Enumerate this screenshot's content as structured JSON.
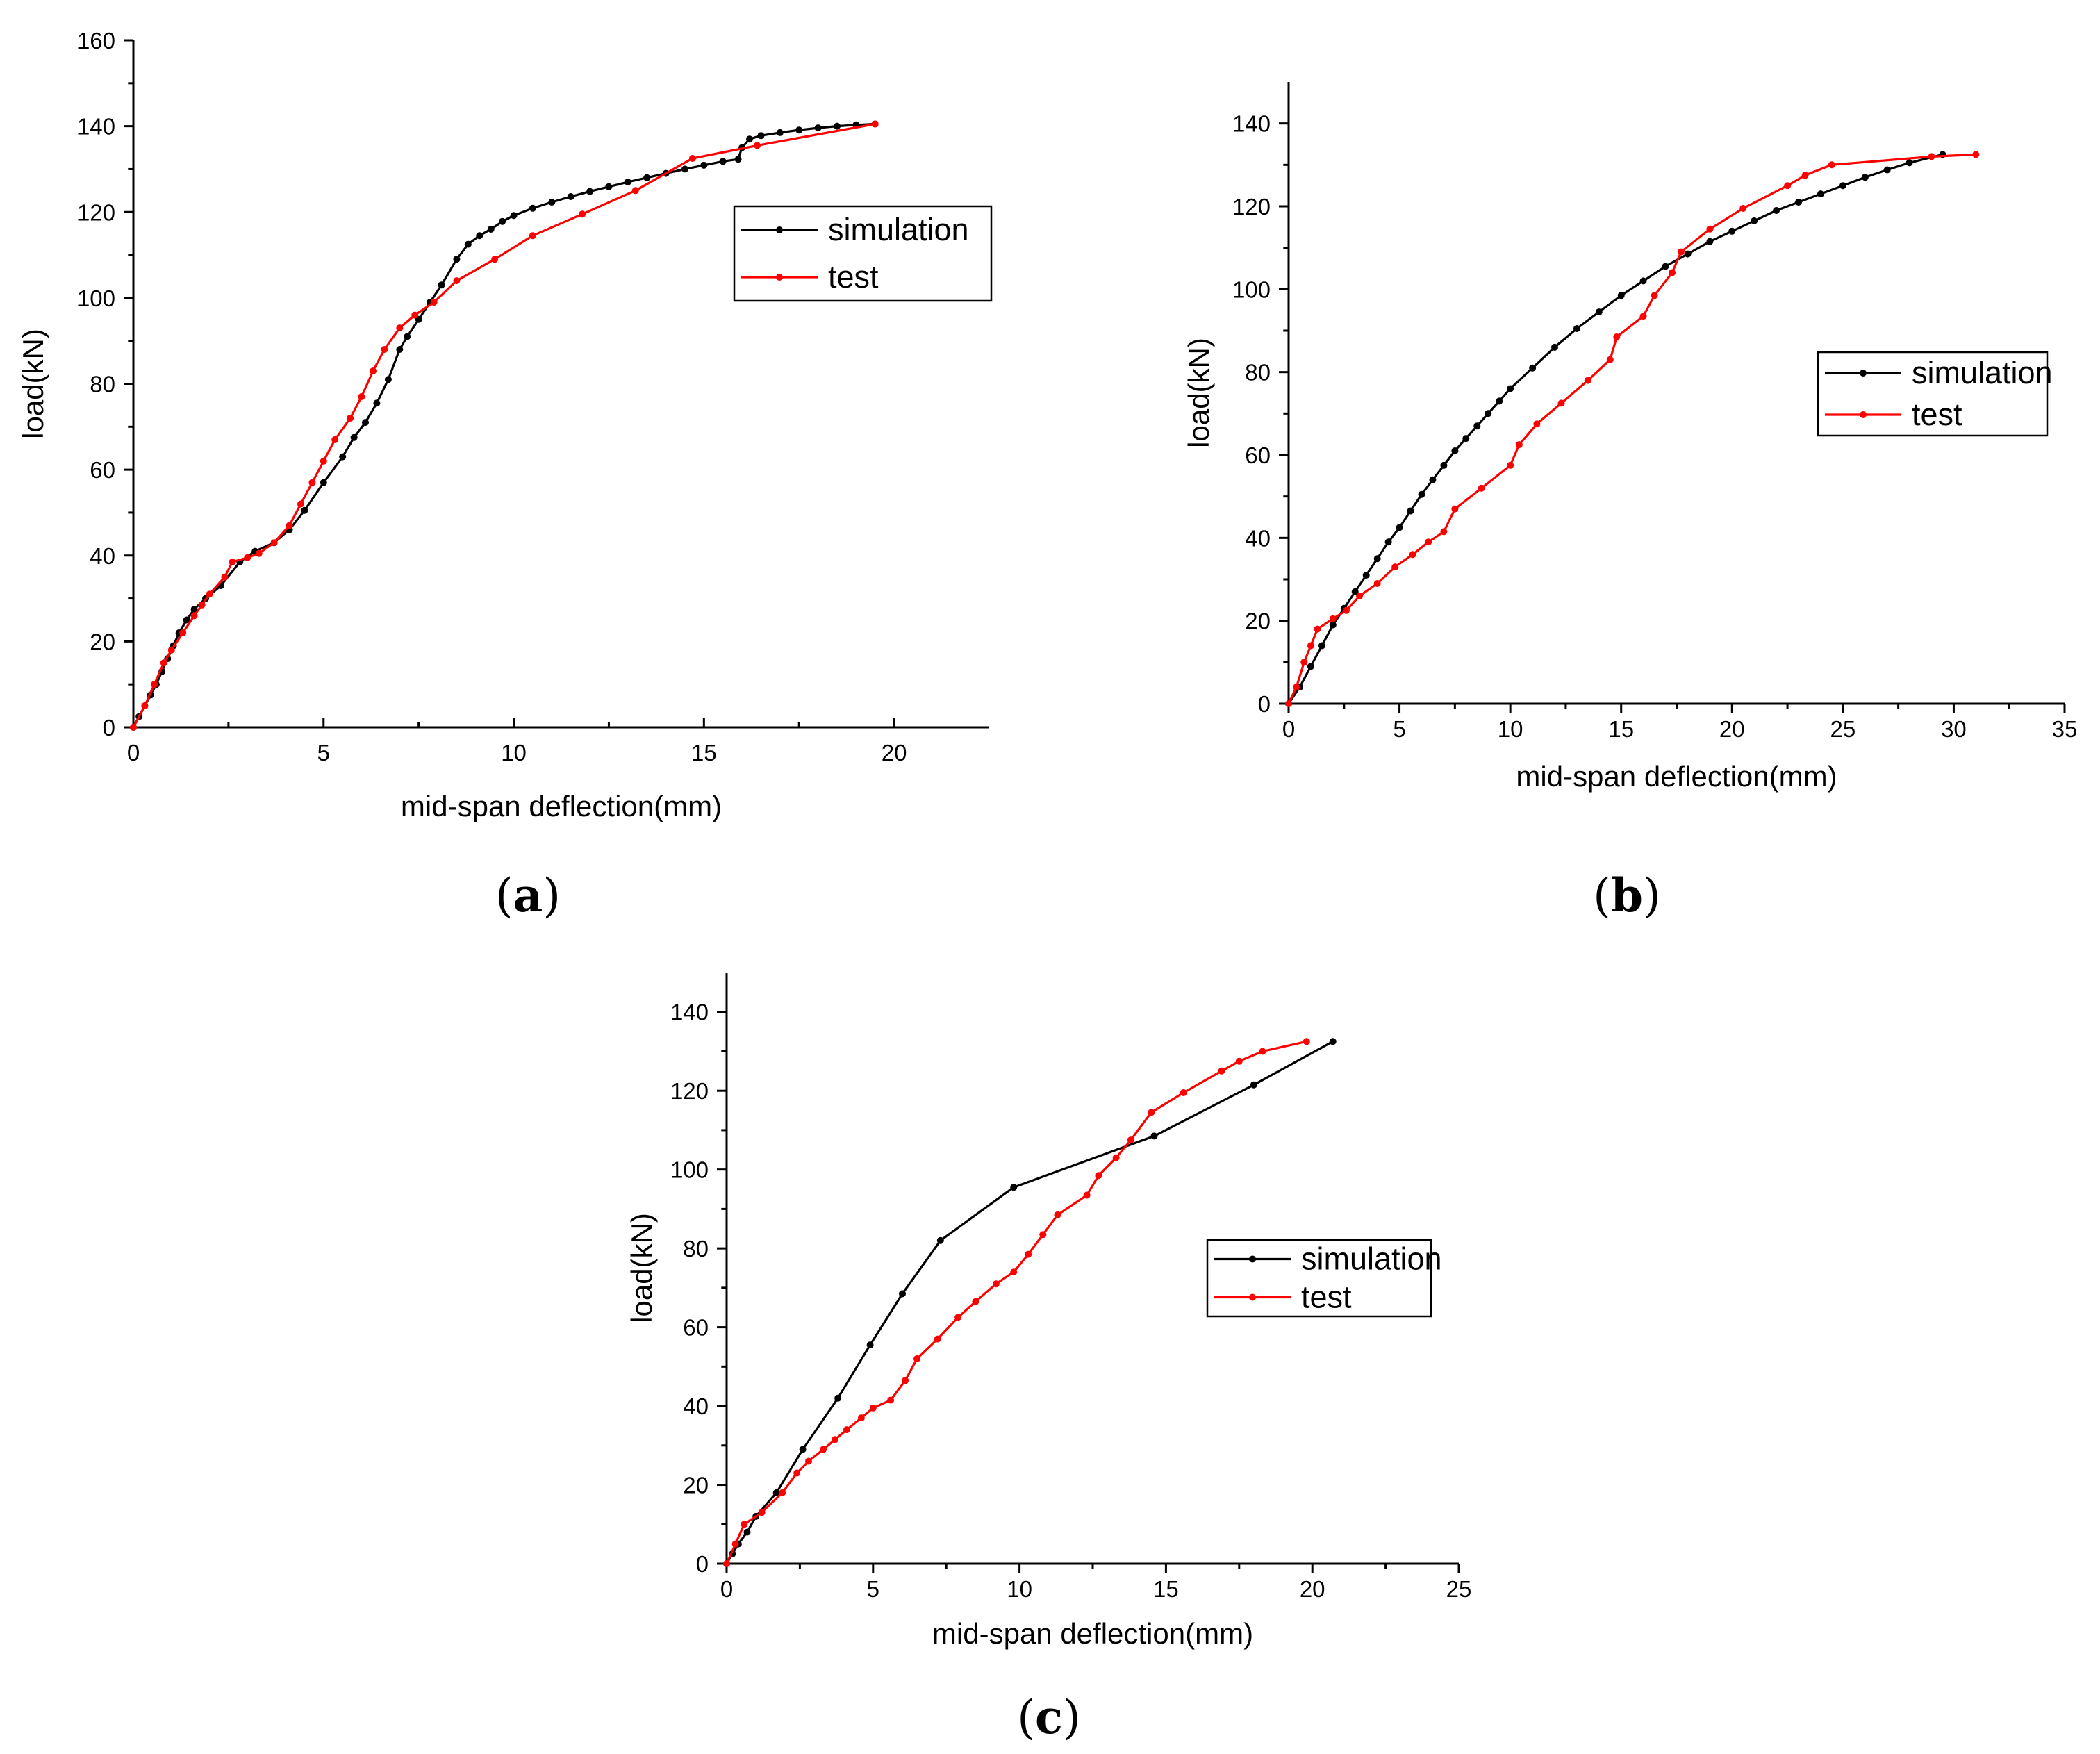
{
  "chart_data": [
    {
      "type": "line",
      "panel_label": "a",
      "xlabel": "mid-span deflection(mm)",
      "ylabel": "load(kN)",
      "xlim": [
        0,
        22.5
      ],
      "ylim": [
        0,
        160
      ],
      "xticks": [
        "0",
        "5",
        "10",
        "15",
        "20"
      ],
      "yticks": [
        "0",
        "20",
        "40",
        "60",
        "80",
        "100",
        "120",
        "140",
        "160"
      ],
      "legend": "right",
      "series": [
        {
          "name": "simulation",
          "color": "#000000",
          "points": [
            [
              0,
              0
            ],
            [
              0.15,
              2.5
            ],
            [
              0.3,
              5
            ],
            [
              0.45,
              7.5
            ],
            [
              0.6,
              10
            ],
            [
              0.75,
              13
            ],
            [
              0.9,
              16
            ],
            [
              1.05,
              19
            ],
            [
              1.2,
              22
            ],
            [
              1.4,
              25
            ],
            [
              1.6,
              27.5
            ],
            [
              1.9,
              30
            ],
            [
              2.3,
              33
            ],
            [
              2.8,
              38.5
            ],
            [
              3.2,
              41
            ],
            [
              3.7,
              43
            ],
            [
              4.1,
              46
            ],
            [
              4.5,
              50.5
            ],
            [
              5,
              57
            ],
            [
              5.5,
              63
            ],
            [
              5.8,
              67.5
            ],
            [
              6.1,
              71
            ],
            [
              6.4,
              75.5
            ],
            [
              6.7,
              81
            ],
            [
              7,
              88
            ],
            [
              7.2,
              91
            ],
            [
              7.5,
              95
            ],
            [
              7.8,
              99
            ],
            [
              8.1,
              103
            ],
            [
              8.5,
              109
            ],
            [
              8.8,
              112.5
            ],
            [
              9.1,
              114.5
            ],
            [
              9.4,
              116
            ],
            [
              9.7,
              117.8
            ],
            [
              10,
              119.2
            ],
            [
              10.5,
              120.9
            ],
            [
              11,
              122.3
            ],
            [
              11.5,
              123.6
            ],
            [
              12,
              124.8
            ],
            [
              12.5,
              125.9
            ],
            [
              13,
              127
            ],
            [
              13.5,
              128
            ],
            [
              14,
              129
            ],
            [
              14.5,
              130
            ],
            [
              15,
              130.9
            ],
            [
              15.5,
              131.8
            ],
            [
              15.9,
              132.3
            ],
            [
              16,
              135
            ],
            [
              16.2,
              137
            ],
            [
              16.5,
              137.8
            ],
            [
              17,
              138.5
            ],
            [
              17.5,
              139.1
            ],
            [
              18,
              139.6
            ],
            [
              18.5,
              140
            ],
            [
              19,
              140.3
            ],
            [
              19.5,
              140.5
            ]
          ]
        },
        {
          "name": "test",
          "color": "#ff0000",
          "points": [
            [
              0,
              0
            ],
            [
              0.3,
              5
            ],
            [
              0.55,
              10
            ],
            [
              0.8,
              15
            ],
            [
              1.0,
              18
            ],
            [
              1.3,
              22
            ],
            [
              1.6,
              26
            ],
            [
              1.8,
              28.5
            ],
            [
              2.0,
              31
            ],
            [
              2.4,
              35
            ],
            [
              2.6,
              38.5
            ],
            [
              3.0,
              39.5
            ],
            [
              3.3,
              40.5
            ],
            [
              3.7,
              43
            ],
            [
              4.1,
              47
            ],
            [
              4.4,
              52
            ],
            [
              4.7,
              57
            ],
            [
              5.0,
              62
            ],
            [
              5.3,
              67
            ],
            [
              5.7,
              72
            ],
            [
              6.0,
              77
            ],
            [
              6.3,
              83
            ],
            [
              6.6,
              88
            ],
            [
              7.0,
              93
            ],
            [
              7.4,
              96
            ],
            [
              7.9,
              99
            ],
            [
              8.5,
              104
            ],
            [
              9.5,
              109
            ],
            [
              10.5,
              114.5
            ],
            [
              11.8,
              119.5
            ],
            [
              13.2,
              125
            ],
            [
              14.7,
              132.5
            ],
            [
              16.4,
              135.5
            ],
            [
              19.5,
              140.5
            ]
          ]
        }
      ]
    },
    {
      "type": "line",
      "panel_label": "b",
      "xlabel": "mid-span deflection(mm)",
      "ylabel": "load(kN)",
      "xlim": [
        0,
        35
      ],
      "ylim": [
        0,
        150
      ],
      "xticks": [
        "0",
        "5",
        "10",
        "15",
        "20",
        "25",
        "30",
        "35"
      ],
      "yticks": [
        "0",
        "20",
        "40",
        "60",
        "80",
        "100",
        "120",
        "140"
      ],
      "legend": "right",
      "series": [
        {
          "name": "simulation",
          "color": "#000000",
          "points": [
            [
              0,
              0
            ],
            [
              0.5,
              4
            ],
            [
              1,
              9
            ],
            [
              1.5,
              14
            ],
            [
              2,
              19
            ],
            [
              2.5,
              23
            ],
            [
              3,
              27
            ],
            [
              3.5,
              31
            ],
            [
              4,
              35
            ],
            [
              4.5,
              39
            ],
            [
              5,
              42.5
            ],
            [
              5.5,
              46.5
            ],
            [
              6,
              50.5
            ],
            [
              6.5,
              54
            ],
            [
              7,
              57.5
            ],
            [
              7.5,
              61
            ],
            [
              8,
              64
            ],
            [
              8.5,
              67
            ],
            [
              9,
              70
            ],
            [
              9.5,
              73
            ],
            [
              10,
              76
            ],
            [
              11,
              81
            ],
            [
              12,
              86
            ],
            [
              13,
              90.5
            ],
            [
              14,
              94.5
            ],
            [
              15,
              98.5
            ],
            [
              16,
              102
            ],
            [
              17,
              105.5
            ],
            [
              18,
              108.5
            ],
            [
              19,
              111.5
            ],
            [
              20,
              114
            ],
            [
              21,
              116.5
            ],
            [
              22,
              119
            ],
            [
              23,
              121
            ],
            [
              24,
              123
            ],
            [
              25,
              125
            ],
            [
              26,
              127
            ],
            [
              27,
              128.8
            ],
            [
              28,
              130.5
            ],
            [
              29.5,
              132.5
            ]
          ]
        },
        {
          "name": "test",
          "color": "#ff0000",
          "points": [
            [
              0,
              0
            ],
            [
              0.35,
              4
            ],
            [
              0.7,
              10
            ],
            [
              1.0,
              14
            ],
            [
              1.3,
              18
            ],
            [
              2,
              20.5
            ],
            [
              2.6,
              22.5
            ],
            [
              3.2,
              26
            ],
            [
              4,
              29
            ],
            [
              4.8,
              33
            ],
            [
              5.6,
              36
            ],
            [
              6.3,
              39
            ],
            [
              7.0,
              41.5
            ],
            [
              7.5,
              47
            ],
            [
              8.7,
              52
            ],
            [
              10,
              57.5
            ],
            [
              10.4,
              62.5
            ],
            [
              11.2,
              67.5
            ],
            [
              12.3,
              72.5
            ],
            [
              13.5,
              78
            ],
            [
              14.5,
              83
            ],
            [
              14.8,
              88.5
            ],
            [
              16,
              93.5
            ],
            [
              16.5,
              98.5
            ],
            [
              17.3,
              104
            ],
            [
              17.7,
              109
            ],
            [
              19,
              114.5
            ],
            [
              20.5,
              119.5
            ],
            [
              22.5,
              125
            ],
            [
              23.3,
              127.5
            ],
            [
              24.5,
              130
            ],
            [
              29,
              132
            ],
            [
              31,
              132.5
            ]
          ]
        }
      ]
    },
    {
      "type": "line",
      "panel_label": "c",
      "xlabel": "mid-span deflection(mm)",
      "ylabel": "load(kN)",
      "xlim": [
        0,
        25
      ],
      "ylim": [
        0,
        150
      ],
      "xticks": [
        "0",
        "5",
        "10",
        "15",
        "20",
        "25"
      ],
      "yticks": [
        "0",
        "20",
        "40",
        "60",
        "80",
        "100",
        "120",
        "140"
      ],
      "legend": "right",
      "series": [
        {
          "name": "simulation",
          "color": "#000000",
          "points": [
            [
              0,
              0
            ],
            [
              0.2,
              2.5
            ],
            [
              0.4,
              5
            ],
            [
              0.7,
              8
            ],
            [
              1.0,
              12
            ],
            [
              1.7,
              18
            ],
            [
              2.6,
              29
            ],
            [
              3.8,
              42
            ],
            [
              4.9,
              55.5
            ],
            [
              6.0,
              68.5
            ],
            [
              7.3,
              82
            ],
            [
              9.8,
              95.5
            ],
            [
              14.6,
              108.5
            ],
            [
              18.0,
              121.5
            ],
            [
              20.7,
              132.5
            ]
          ]
        },
        {
          "name": "test",
          "color": "#ff0000",
          "points": [
            [
              0,
              0
            ],
            [
              0.3,
              5
            ],
            [
              0.6,
              10
            ],
            [
              1.2,
              13
            ],
            [
              1.9,
              18
            ],
            [
              2.4,
              23
            ],
            [
              2.8,
              26
            ],
            [
              3.3,
              29
            ],
            [
              3.7,
              31.5
            ],
            [
              4.1,
              34
            ],
            [
              4.6,
              37
            ],
            [
              5.0,
              39.5
            ],
            [
              5.6,
              41.5
            ],
            [
              6.1,
              46.5
            ],
            [
              6.5,
              52
            ],
            [
              7.2,
              57
            ],
            [
              7.9,
              62.5
            ],
            [
              8.5,
              66.5
            ],
            [
              9.2,
              71
            ],
            [
              9.8,
              74
            ],
            [
              10.3,
              78.5
            ],
            [
              10.8,
              83.5
            ],
            [
              11.3,
              88.5
            ],
            [
              12.3,
              93.5
            ],
            [
              12.7,
              98.5
            ],
            [
              13.3,
              103
            ],
            [
              13.8,
              107.5
            ],
            [
              14.5,
              114.5
            ],
            [
              15.6,
              119.5
            ],
            [
              16.9,
              125
            ],
            [
              17.5,
              127.5
            ],
            [
              18.3,
              130
            ],
            [
              19.8,
              132.5
            ]
          ]
        }
      ]
    }
  ]
}
